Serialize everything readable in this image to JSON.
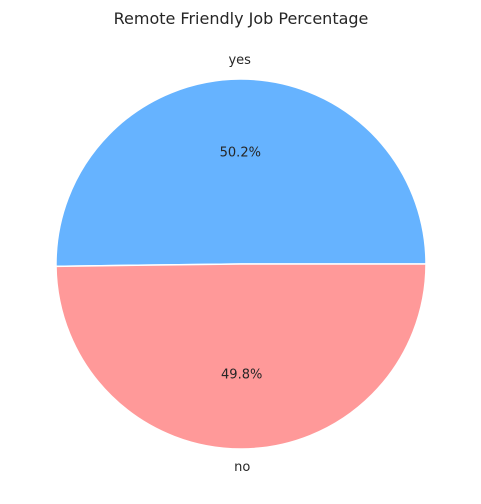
{
  "chart_data": {
    "type": "pie",
    "title": "Remote Friendly Job Percentage",
    "categories": [
      "yes",
      "no"
    ],
    "values": [
      50.2,
      49.8
    ],
    "labels": [
      "50.2%",
      "49.8%"
    ],
    "colors": [
      "#66b3ff",
      "#ff9999"
    ],
    "start_angle_deg": 0,
    "direction": "counterclockwise"
  }
}
